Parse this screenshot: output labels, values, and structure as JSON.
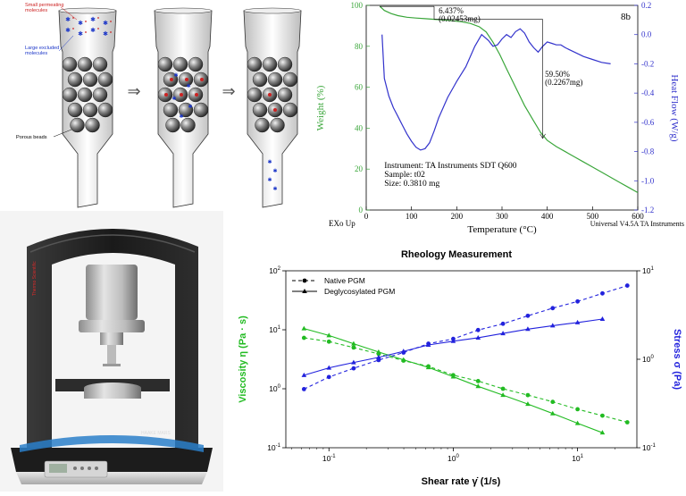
{
  "sec": {
    "label_small": "Small permeating molecules",
    "label_small_l1": "Small permeating",
    "label_small_l2": "molecules",
    "label_large_l1": "Large excluded",
    "label_large_l2": "molecules",
    "label_beads": "Porous beads",
    "arrow_glyph": "⇒",
    "colors": {
      "small": "#cc2222",
      "large": "#1a35c8",
      "bead": "#555555"
    }
  },
  "instrument": {
    "brand_text": "Thermo Scientific",
    "model_text": "HAAKE MARS"
  },
  "chart_data": [
    {
      "type": "line",
      "id": "tga-dsc",
      "title": "8b",
      "xlabel": "Temperature (°C)",
      "ylabel": "Weight (%)",
      "y2label": "Heat Flow (W/g)",
      "xlim": [
        0,
        600
      ],
      "ylim": [
        0,
        100
      ],
      "y2lim": [
        -1.2,
        0.2
      ],
      "xticks": [
        0,
        100,
        200,
        300,
        400,
        500,
        600
      ],
      "yticks": [
        0,
        20,
        40,
        60,
        80,
        100
      ],
      "y2ticks": [
        -1.2,
        -1.0,
        -0.8,
        -0.6,
        -0.4,
        -0.2,
        0.0,
        0.2
      ],
      "x_left_label": "EXo Up",
      "footer_right": "Universal V4.5A TA Instruments",
      "info": [
        "Instrument: TA Instruments SDT Q600",
        "Sample: t02",
        "Size: 0.3810 mg"
      ],
      "annotations": [
        {
          "text1": "6.437%",
          "text2": "(0.02453mg)"
        },
        {
          "text1": "59.50%",
          "text2": "(0.2267mg)"
        }
      ],
      "series": [
        {
          "axis": "y",
          "color": "#3aa63a",
          "x": [
            30,
            40,
            55,
            70,
            90,
            110,
            130,
            150,
            170,
            190,
            210,
            230,
            250,
            265,
            280,
            295,
            310,
            330,
            350,
            370,
            385,
            400,
            420,
            440,
            460,
            480,
            500,
            520,
            540,
            560,
            580,
            600
          ],
          "y": [
            99.5,
            97.5,
            96.0,
            95.0,
            94.2,
            93.8,
            93.5,
            93.2,
            92.9,
            92.5,
            92.0,
            91.2,
            89.5,
            87.0,
            82.0,
            76.0,
            69.0,
            60.0,
            51.0,
            43.5,
            38.0,
            34.0,
            31.0,
            28.5,
            26.0,
            23.5,
            21.0,
            18.5,
            16.0,
            13.5,
            11.0,
            8.5
          ]
        },
        {
          "axis": "y2",
          "color": "#3333cc",
          "x": [
            35,
            40,
            50,
            60,
            70,
            80,
            90,
            100,
            110,
            120,
            130,
            140,
            150,
            160,
            180,
            200,
            220,
            240,
            255,
            270,
            280,
            290,
            300,
            310,
            320,
            330,
            340,
            350,
            360,
            370,
            380,
            390,
            400,
            410,
            420,
            430,
            440,
            460,
            480,
            500,
            520,
            540
          ],
          "y": [
            0.0,
            -0.3,
            -0.42,
            -0.5,
            -0.56,
            -0.62,
            -0.68,
            -0.73,
            -0.77,
            -0.79,
            -0.78,
            -0.74,
            -0.66,
            -0.57,
            -0.43,
            -0.32,
            -0.22,
            -0.08,
            0.0,
            -0.04,
            -0.08,
            -0.07,
            -0.03,
            0.0,
            -0.02,
            0.02,
            0.04,
            0.01,
            -0.05,
            -0.09,
            -0.12,
            -0.08,
            -0.05,
            -0.06,
            -0.07,
            -0.07,
            -0.09,
            -0.12,
            -0.15,
            -0.17,
            -0.19,
            -0.2
          ]
        }
      ]
    },
    {
      "type": "line",
      "id": "rheology",
      "title": "Rheology Measurement",
      "xlabel": "Shear rate γ̇ (1/s)",
      "ylabel": "Viscosity η (Pa · s)",
      "y2label": "Stress σ (Pa)",
      "xscale": "log",
      "yscale": "log",
      "y2scale": "log",
      "xlim": [
        0.045,
        30
      ],
      "ylim": [
        0.1,
        100
      ],
      "y2lim": [
        0.1,
        10
      ],
      "xticks": [
        {
          "base": "10",
          "exp": "-1"
        },
        {
          "base": "10",
          "exp": "0"
        },
        {
          "base": "10",
          "exp": "1"
        }
      ],
      "yticks": [
        {
          "base": "10",
          "exp": "-1"
        },
        {
          "base": "10",
          "exp": "0"
        },
        {
          "base": "10",
          "exp": "1"
        },
        {
          "base": "10",
          "exp": "2"
        }
      ],
      "y2ticks": [
        {
          "base": "10",
          "exp": "-1"
        },
        {
          "base": "10",
          "exp": "0"
        },
        {
          "base": "10",
          "exp": "1"
        }
      ],
      "legend": [
        {
          "label": "Native PGM",
          "dash": true,
          "marker": "circle"
        },
        {
          "label": "Deglycosylated PGM",
          "dash": false,
          "marker": "triangle"
        }
      ],
      "colors": {
        "viscosity": "#22bb22",
        "stress": "#2222dd"
      },
      "shear_rate": [
        0.063,
        0.1,
        0.158,
        0.251,
        0.398,
        0.631,
        1.0,
        1.585,
        2.512,
        3.981,
        6.31,
        10.0,
        15.85,
        25.12
      ],
      "series": [
        {
          "name": "Native PGM",
          "quantity": "viscosity",
          "axis": "y",
          "dash": true,
          "marker": "circle",
          "x": [
            0.063,
            0.1,
            0.158,
            0.251,
            0.398,
            0.631,
            1.0,
            1.585,
            2.512,
            3.981,
            6.31,
            10.0,
            15.85,
            25.12
          ],
          "values": [
            7.3,
            6.3,
            5.0,
            3.9,
            3.0,
            2.4,
            1.7,
            1.35,
            1.0,
            0.78,
            0.6,
            0.45,
            0.35,
            0.27
          ]
        },
        {
          "name": "Deglycosylated PGM",
          "quantity": "viscosity",
          "axis": "y",
          "dash": false,
          "marker": "triangle",
          "x": [
            0.063,
            0.1,
            0.158,
            0.251,
            0.398,
            0.631,
            1.0,
            1.585,
            2.512,
            3.981,
            6.31,
            10.0,
            15.85
          ],
          "values": [
            10.5,
            8.0,
            5.8,
            4.2,
            3.1,
            2.3,
            1.6,
            1.1,
            0.78,
            0.55,
            0.38,
            0.26,
            0.18
          ]
        },
        {
          "name": "Native PGM",
          "quantity": "stress",
          "axis": "y2",
          "dash": true,
          "marker": "circle",
          "x": [
            0.063,
            0.1,
            0.158,
            0.251,
            0.398,
            0.631,
            1.0,
            1.585,
            2.512,
            3.981,
            6.31,
            10.0,
            15.85,
            25.12
          ],
          "values": [
            0.46,
            0.63,
            0.79,
            0.98,
            1.19,
            1.5,
            1.7,
            2.14,
            2.52,
            3.1,
            3.78,
            4.5,
            5.55,
            6.8
          ]
        },
        {
          "name": "Deglycosylated PGM",
          "quantity": "stress",
          "axis": "y2",
          "dash": false,
          "marker": "triangle",
          "x": [
            0.063,
            0.1,
            0.158,
            0.251,
            0.398,
            0.631,
            1.0,
            1.585,
            2.512,
            3.981,
            6.31,
            10.0,
            15.85
          ],
          "values": [
            0.66,
            0.8,
            0.92,
            1.05,
            1.23,
            1.45,
            1.6,
            1.75,
            1.96,
            2.19,
            2.4,
            2.6,
            2.85
          ]
        }
      ]
    }
  ]
}
